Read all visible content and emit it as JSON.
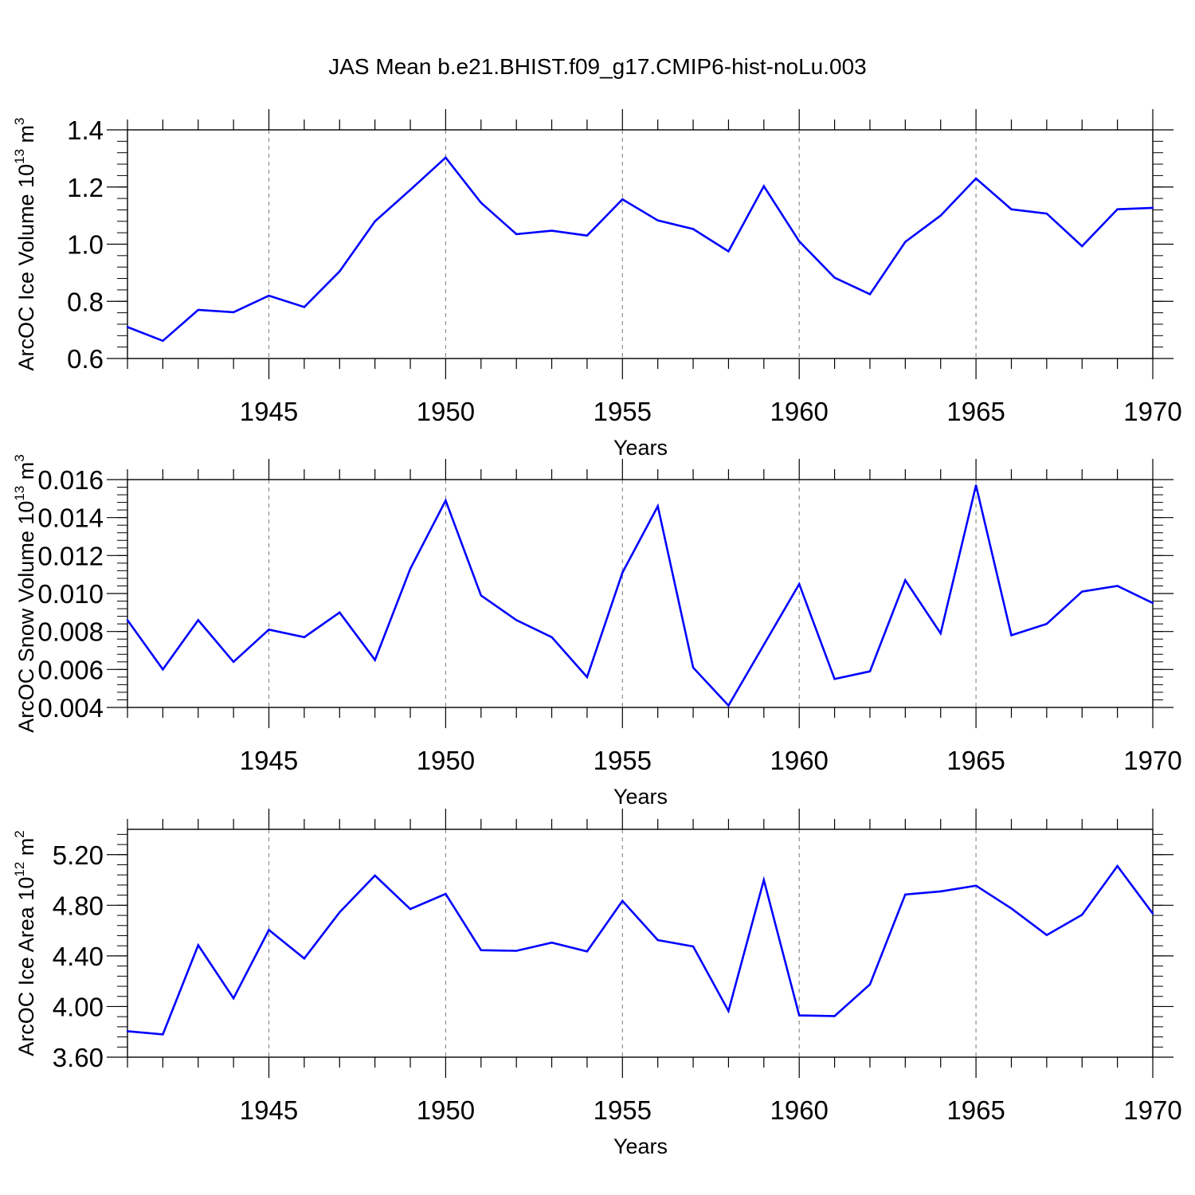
{
  "title": "JAS Mean b.e21.BHIST.f09_g17.CMIP6-hist-noLu.003",
  "line_color": "#0000ff",
  "grid_color": "#8c8c8c",
  "chart_data": [
    {
      "type": "line",
      "title": "",
      "xlabel": "Years",
      "ylabel": "ArcOC Ice Volume 10",
      "ylabel_exp": "13",
      "ylabel_unit": " m",
      "ylabel_unit_exp": "3",
      "xlim": [
        1941,
        1970
      ],
      "ylim": [
        0.6,
        1.4
      ],
      "xticks": [
        1945,
        1950,
        1955,
        1960,
        1965,
        1970
      ],
      "yticks": [
        0.6,
        0.8,
        1.0,
        1.2,
        1.4
      ],
      "ytick_labels": [
        "0.6",
        "0.8",
        "1.0",
        "1.2",
        "1.4"
      ],
      "grid": "vertical-dashed",
      "x": [
        1941,
        1942,
        1943,
        1944,
        1945,
        1946,
        1947,
        1948,
        1949,
        1950,
        1951,
        1952,
        1953,
        1954,
        1955,
        1956,
        1957,
        1958,
        1959,
        1960,
        1961,
        1962,
        1963,
        1964,
        1965,
        1966,
        1967,
        1968,
        1969,
        1970
      ],
      "series": [
        {
          "values": [
            0.71,
            0.662,
            0.77,
            0.762,
            0.82,
            0.78,
            0.905,
            1.08,
            1.19,
            1.303,
            1.145,
            1.035,
            1.047,
            1.03,
            1.157,
            1.083,
            1.053,
            0.975,
            1.203,
            1.01,
            0.883,
            0.825,
            1.008,
            1.1,
            1.23,
            1.122,
            1.107,
            0.993,
            1.122,
            1.127
          ]
        }
      ]
    },
    {
      "type": "line",
      "title": "",
      "xlabel": "Years",
      "ylabel": "ArcOC Snow Volume 10",
      "ylabel_exp": "13",
      "ylabel_unit": " m",
      "ylabel_unit_exp": "3",
      "xlim": [
        1941,
        1970
      ],
      "ylim": [
        0.004,
        0.016
      ],
      "xticks": [
        1945,
        1950,
        1955,
        1960,
        1965,
        1970
      ],
      "yticks": [
        0.004,
        0.006,
        0.008,
        0.01,
        0.012,
        0.014,
        0.016
      ],
      "ytick_labels": [
        "0.004",
        "0.006",
        "0.008",
        "0.010",
        "0.012",
        "0.014",
        "0.016"
      ],
      "grid": "vertical-dashed",
      "x": [
        1941,
        1942,
        1943,
        1944,
        1945,
        1946,
        1947,
        1948,
        1949,
        1950,
        1951,
        1952,
        1953,
        1954,
        1955,
        1956,
        1957,
        1958,
        1959,
        1960,
        1961,
        1962,
        1963,
        1964,
        1965,
        1966,
        1967,
        1968,
        1969,
        1970
      ],
      "series": [
        {
          "values": [
            0.0086,
            0.006,
            0.0086,
            0.0064,
            0.0081,
            0.0077,
            0.009,
            0.0065,
            0.0113,
            0.0149,
            0.0099,
            0.0086,
            0.0077,
            0.0056,
            0.0111,
            0.0146,
            0.0061,
            0.0041,
            0.0073,
            0.0105,
            0.0055,
            0.0059,
            0.0107,
            0.0079,
            0.0157,
            0.0078,
            0.0084,
            0.0101,
            0.0104,
            0.0095
          ]
        }
      ]
    },
    {
      "type": "line",
      "title": "",
      "xlabel": "Years",
      "ylabel": "ArcOC Ice Area 10",
      "ylabel_exp": "12",
      "ylabel_unit": " m",
      "ylabel_unit_exp": "2",
      "xlim": [
        1941,
        1970
      ],
      "ylim": [
        3.6,
        5.4
      ],
      "xticks": [
        1945,
        1950,
        1955,
        1960,
        1965,
        1970
      ],
      "yticks": [
        3.6,
        4.0,
        4.4,
        4.8,
        5.2
      ],
      "ytick_labels": [
        "3.60",
        "4.00",
        "4.40",
        "4.80",
        "5.20"
      ],
      "grid": "vertical-dashed",
      "x": [
        1941,
        1942,
        1943,
        1944,
        1945,
        1946,
        1947,
        1948,
        1949,
        1950,
        1951,
        1952,
        1953,
        1954,
        1955,
        1956,
        1957,
        1958,
        1959,
        1960,
        1961,
        1962,
        1963,
        1964,
        1965,
        1966,
        1967,
        1968,
        1969,
        1970
      ],
      "series": [
        {
          "values": [
            3.805,
            3.78,
            4.485,
            4.065,
            4.605,
            4.38,
            4.745,
            5.035,
            4.77,
            4.89,
            4.445,
            4.44,
            4.505,
            4.435,
            4.835,
            4.525,
            4.475,
            3.965,
            5.0,
            3.93,
            3.925,
            4.175,
            4.885,
            4.91,
            4.955,
            4.775,
            4.565,
            4.725,
            5.11,
            4.735
          ]
        }
      ]
    }
  ]
}
